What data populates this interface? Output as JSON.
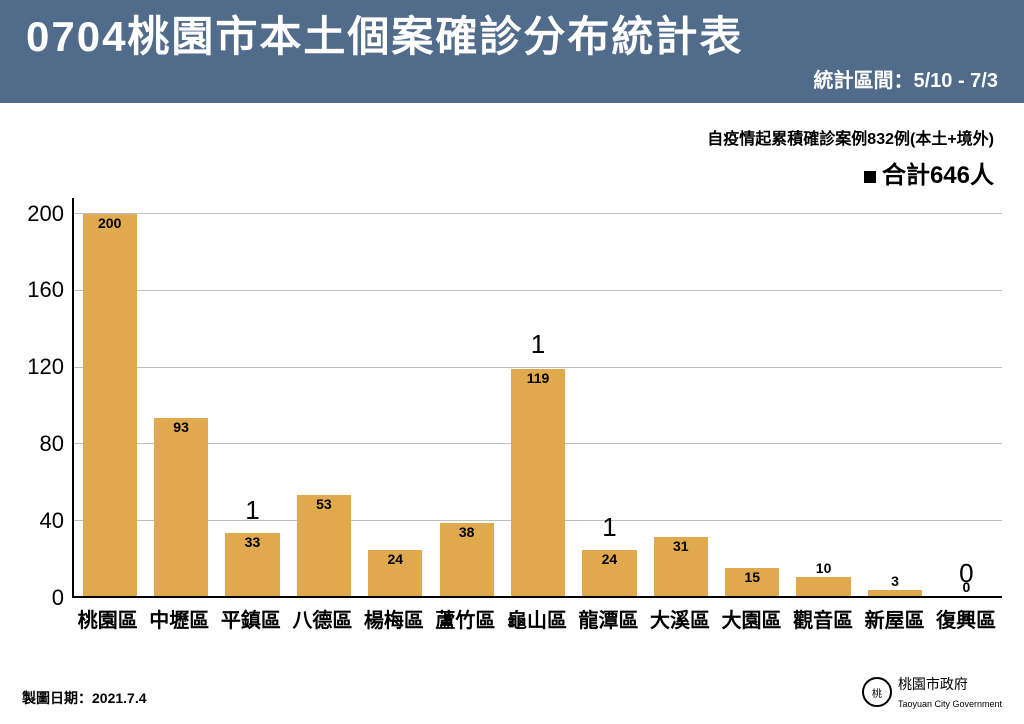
{
  "header": {
    "title": "0704桃園市本土個案確診分布統計表",
    "period_label": "統計區間：5/10 - 7/3",
    "bg_color": "#516c8a",
    "title_color": "#ffffff",
    "title_fontsize": 42
  },
  "note": "自疫情起累積確診案例832例(本土+境外)",
  "legend": {
    "marker": "■",
    "text": "合計646人"
  },
  "chart": {
    "type": "bar",
    "categories": [
      "桃園區",
      "中壢區",
      "平鎮區",
      "八德區",
      "楊梅區",
      "蘆竹區",
      "龜山區",
      "龍潭區",
      "大溪區",
      "大園區",
      "觀音區",
      "新屋區",
      "復興區"
    ],
    "values": [
      200,
      93,
      33,
      53,
      24,
      38,
      119,
      24,
      31,
      15,
      10,
      3,
      0
    ],
    "callouts": [
      null,
      null,
      "1",
      null,
      null,
      null,
      "1",
      "1",
      null,
      null,
      null,
      null,
      "0"
    ],
    "bar_color": "#e0a94e",
    "ylim": [
      0,
      208
    ],
    "yticks": [
      0,
      40,
      80,
      120,
      160,
      200
    ],
    "grid_color": "#bfbfbf",
    "axis_color": "#000000",
    "value_fontsize": 14,
    "xlabel_fontsize": 20,
    "ytick_fontsize": 22,
    "callout_fontsize": 26,
    "value_above_threshold": 10
  },
  "footer": {
    "left": "製圖日期：2021.7.4",
    "org": "桃園市政府",
    "org_en": "Taoyuan City Government"
  }
}
